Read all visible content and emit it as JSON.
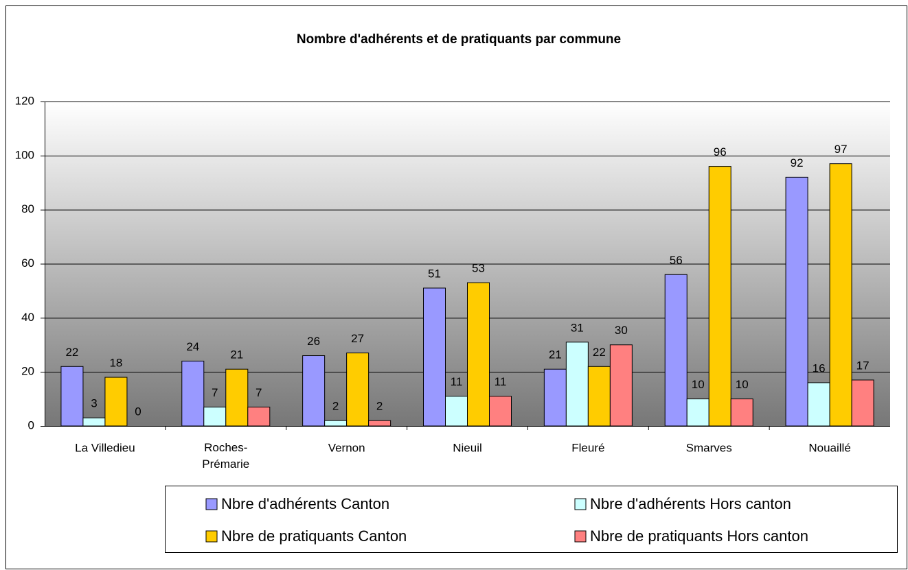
{
  "chart_data": {
    "type": "bar",
    "title": "Nombre d'adhérents et de pratiquants par commune",
    "categories": [
      "La Villedieu",
      "Roches-Prémarie",
      "Vernon",
      "Nieuil",
      "Fleuré",
      "Smarves",
      "Nouaillé"
    ],
    "series": [
      {
        "name": "Nbre d'adhérents Canton",
        "color": "#9999ff",
        "values": [
          22,
          24,
          26,
          51,
          21,
          56,
          92
        ]
      },
      {
        "name": "Nbre d'adhérents Hors canton",
        "color": "#ccffff",
        "values": [
          3,
          7,
          2,
          11,
          31,
          10,
          16
        ]
      },
      {
        "name": "Nbre de pratiquants Canton",
        "color": "#ffcc00",
        "values": [
          18,
          21,
          27,
          53,
          22,
          96,
          97
        ]
      },
      {
        "name": "Nbre de pratiquants Hors canton",
        "color": "#ff8080",
        "values": [
          0,
          7,
          2,
          11,
          30,
          10,
          17
        ]
      }
    ],
    "ylim": [
      0,
      120
    ],
    "yticks": [
      0,
      20,
      40,
      60,
      80,
      100,
      120
    ],
    "grid": true,
    "legend": "bottom"
  }
}
